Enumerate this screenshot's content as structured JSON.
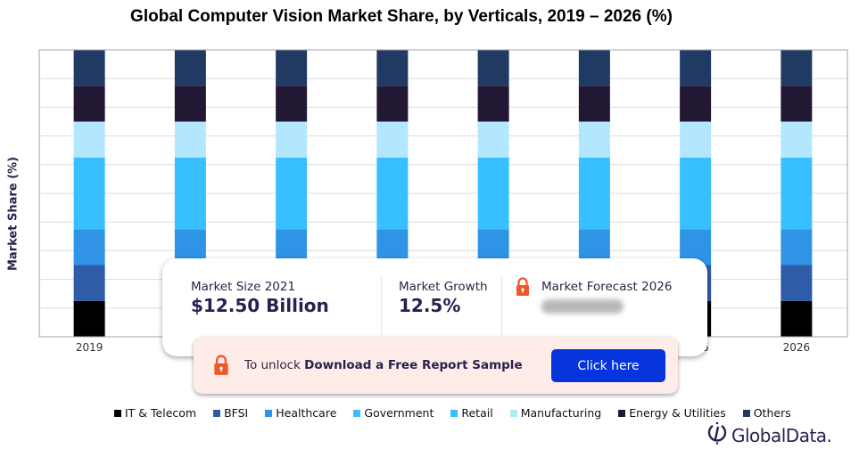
{
  "chart_data": {
    "type": "bar",
    "stacked": true,
    "title": "Global Computer Vision Market Share, by Verticals, 2019 – 2026 (%)",
    "xlabel": "",
    "ylabel": "Market Share (%)",
    "ylim": [
      0,
      100
    ],
    "grid": true,
    "legend_position": "bottom",
    "categories": [
      "2019",
      "2020",
      "2021",
      "2022",
      "2023",
      "2024",
      "2025",
      "2026"
    ],
    "series": [
      {
        "name": "IT & Telecom",
        "color": "#000000",
        "values": [
          12.5,
          12.5,
          12.5,
          12.5,
          12.5,
          12.5,
          12.5,
          12.5
        ]
      },
      {
        "name": "BFSI",
        "color": "#2f5ca8",
        "values": [
          12.5,
          12.5,
          12.5,
          12.5,
          12.5,
          12.5,
          12.5,
          12.5
        ]
      },
      {
        "name": "Healthcare",
        "color": "#2f93e6",
        "values": [
          12.5,
          12.5,
          12.5,
          12.5,
          12.5,
          12.5,
          12.5,
          12.5
        ]
      },
      {
        "name": "Government",
        "color": "#38bfff",
        "values": [
          12.5,
          12.5,
          12.5,
          12.5,
          12.5,
          12.5,
          12.5,
          12.5
        ]
      },
      {
        "name": "Retail",
        "color": "#38bfff",
        "values": [
          12.5,
          12.5,
          12.5,
          12.5,
          12.5,
          12.5,
          12.5,
          12.5
        ]
      },
      {
        "name": "Manufacturing",
        "color": "#b3e6ff",
        "values": [
          12.5,
          12.5,
          12.5,
          12.5,
          12.5,
          12.5,
          12.5,
          12.5
        ]
      },
      {
        "name": "Energy & Utilities",
        "color": "#231834",
        "values": [
          12.5,
          12.5,
          12.5,
          12.5,
          12.5,
          12.5,
          12.5,
          12.5
        ]
      },
      {
        "name": "Others",
        "color": "#203a64",
        "values": [
          12.5,
          12.5,
          12.5,
          12.5,
          12.5,
          12.5,
          12.5,
          12.5
        ]
      }
    ]
  },
  "overlay": {
    "market_size_label": "Market Size 2021",
    "market_size_value": "$12.50 Billion",
    "market_growth_label": "Market Growth",
    "market_growth_value": "12.5%",
    "market_forecast_label": "Market Forecast 2026",
    "market_forecast_value": "",
    "lock_icon": "lock-icon"
  },
  "cta": {
    "text_prefix": "To unlock ",
    "text_bold": "Download a Free Report Sample",
    "button_label": "Click here",
    "button_color": "#0533dc",
    "lock_color": "#f0582a"
  },
  "brand": {
    "name": "GlobalData."
  }
}
